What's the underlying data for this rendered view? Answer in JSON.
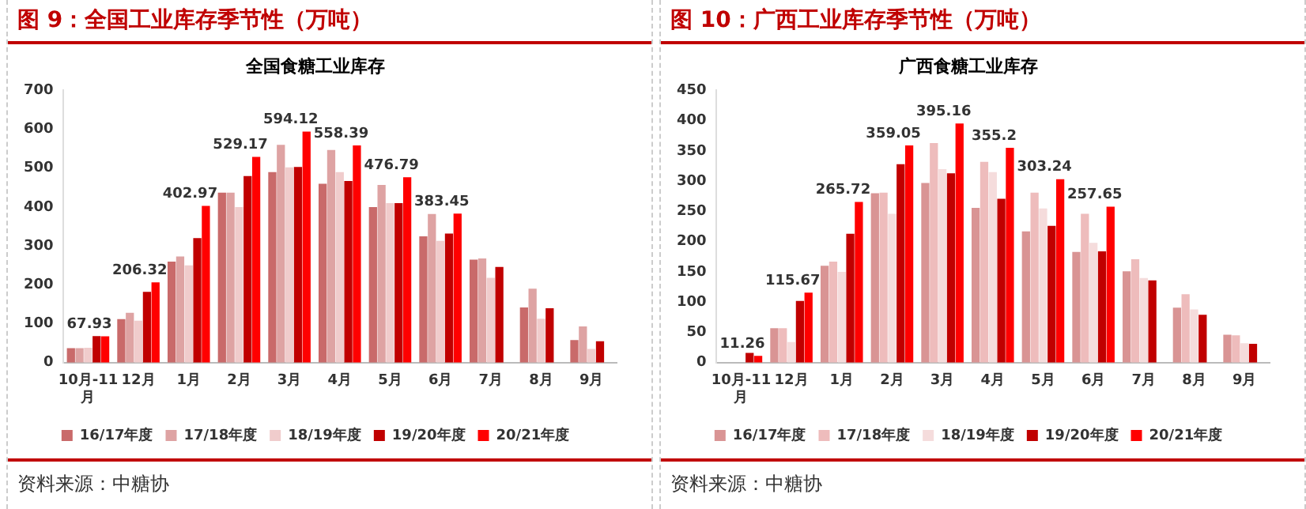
{
  "chart_data": [
    {
      "type": "bar",
      "title": "图 9：全国工业库存季节性（万吨）",
      "subtitle": "全国食糖工业库存",
      "annotations": [
        "资料来源：中糖协"
      ],
      "categories": [
        "10月-11月",
        "12月",
        "1月",
        "2月",
        "3月",
        "4月",
        "5月",
        "6月",
        "7月",
        "8月",
        "9月"
      ],
      "ylim": [
        0,
        700
      ],
      "yticks": [
        0,
        100,
        200,
        300,
        400,
        500,
        600,
        700
      ],
      "grid": false,
      "legend": "bottom",
      "series": [
        {
          "name": "16/17年度",
          "color": "#c96a6a",
          "values": [
            37,
            112,
            260,
            437,
            490,
            460,
            400,
            325,
            265,
            142,
            58
          ]
        },
        {
          "name": "17/18年度",
          "color": "#dea3a3",
          "values": [
            37,
            128,
            273,
            437,
            560,
            547,
            457,
            382,
            268,
            190,
            93
          ]
        },
        {
          "name": "18/19年度",
          "color": "#f0cccc",
          "values": [
            38,
            108,
            250,
            400,
            502,
            490,
            410,
            313,
            218,
            113,
            35
          ]
        },
        {
          "name": "19/20年度",
          "color": "#c00000",
          "values": [
            68,
            182,
            320,
            480,
            503,
            467,
            410,
            332,
            246,
            140,
            55
          ]
        },
        {
          "name": "20/21年度",
          "color": "#ff0000",
          "values": [
            67.93,
            206.32,
            402.97,
            529.17,
            594.12,
            558.39,
            476.79,
            383.45,
            null,
            null,
            null
          ],
          "value_labels": [
            "67.93",
            "206.32",
            "402.97",
            "529.17",
            "594.12",
            "558.39",
            "476.79",
            "383.45",
            null,
            null,
            null
          ]
        }
      ]
    },
    {
      "type": "bar",
      "title": "图 10：广西工业库存季节性（万吨）",
      "subtitle": "广西食糖工业库存",
      "annotations": [
        "资料来源：中糖协"
      ],
      "categories": [
        "10月-11月",
        "12月",
        "1月",
        "2月",
        "3月",
        "4月",
        "5月",
        "6月",
        "7月",
        "8月",
        "9月"
      ],
      "ylim": [
        0,
        450
      ],
      "yticks": [
        0,
        50,
        100,
        150,
        200,
        250,
        300,
        350,
        400,
        450
      ],
      "grid": false,
      "legend": "bottom",
      "series": [
        {
          "name": "16/17年度",
          "color": "#d99494",
          "values": [
            null,
            57,
            160,
            280,
            297,
            256,
            217,
            183,
            151,
            91,
            46
          ]
        },
        {
          "name": "17/18年度",
          "color": "#eebcbc",
          "values": [
            null,
            57,
            167,
            281,
            363,
            332,
            281,
            246,
            171,
            113,
            45
          ]
        },
        {
          "name": "18/19年度",
          "color": "#f5dcdc",
          "values": [
            null,
            34,
            150,
            246,
            320,
            315,
            255,
            198,
            140,
            88,
            32
          ]
        },
        {
          "name": "19/20年度",
          "color": "#c00000",
          "values": [
            16,
            102,
            213,
            328,
            313,
            271,
            226,
            184,
            136,
            79,
            31
          ]
        },
        {
          "name": "20/21年度",
          "color": "#ff0000",
          "values": [
            11.26,
            115.67,
            265.72,
            359.05,
            395.16,
            355.2,
            303.24,
            257.65,
            null,
            null,
            null
          ],
          "value_labels": [
            "11.26",
            "115.67",
            "265.72",
            "359.05",
            "395.16",
            "355.2",
            "303.24",
            "257.65",
            null,
            null,
            null
          ]
        }
      ]
    }
  ]
}
